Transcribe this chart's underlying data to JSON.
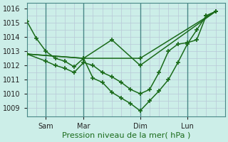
{
  "background_color": "#cceee8",
  "grid_color": "#b8c8d8",
  "line_color": "#1a6b1a",
  "marker_size": 4,
  "line_width": 1.1,
  "ylabel_ticks": [
    1009,
    1010,
    1011,
    1012,
    1013,
    1014,
    1015,
    1016
  ],
  "xlabel": "Pression niveau de la mer( hPa )",
  "xlabel_fontsize": 8,
  "tick_fontsize": 7,
  "xtick_labels": [
    "Sam",
    "Mar",
    "Dim",
    "Lun"
  ],
  "xtick_positions": [
    2,
    6,
    12,
    17
  ],
  "vline_positions": [
    2,
    6,
    12,
    17
  ],
  "xlim": [
    0,
    21
  ],
  "ylim": [
    1008.4,
    1016.4
  ],
  "series": [
    {
      "x": [
        0,
        1,
        2,
        3,
        4,
        5,
        6,
        7,
        8,
        9,
        10,
        11,
        12,
        13,
        14,
        15,
        16,
        17,
        18,
        19,
        20
      ],
      "y": [
        1015.1,
        1013.9,
        1013.0,
        1012.5,
        1012.3,
        1011.9,
        1012.5,
        1011.1,
        1010.8,
        1010.1,
        1009.7,
        1009.3,
        1008.8,
        1009.5,
        1010.2,
        1011.0,
        1012.2,
        1013.5,
        1014.5,
        1015.5,
        1015.8
      ]
    },
    {
      "x": [
        0,
        6,
        12,
        20
      ],
      "y": [
        1012.8,
        1012.5,
        1012.5,
        1015.8
      ]
    },
    {
      "x": [
        0,
        6,
        9,
        12,
        20
      ],
      "y": [
        1012.8,
        1012.5,
        1013.8,
        1012.0,
        1015.8
      ]
    },
    {
      "x": [
        0,
        2,
        3,
        4,
        5,
        6,
        7,
        8,
        9,
        10,
        11,
        12,
        13,
        14,
        15,
        16,
        17,
        18,
        19,
        20
      ],
      "y": [
        1012.8,
        1012.3,
        1012.0,
        1011.8,
        1011.5,
        1012.2,
        1012.0,
        1011.5,
        1011.2,
        1010.8,
        1010.3,
        1010.0,
        1010.3,
        1011.5,
        1013.0,
        1013.5,
        1013.6,
        1013.8,
        1015.5,
        1015.8
      ]
    }
  ]
}
